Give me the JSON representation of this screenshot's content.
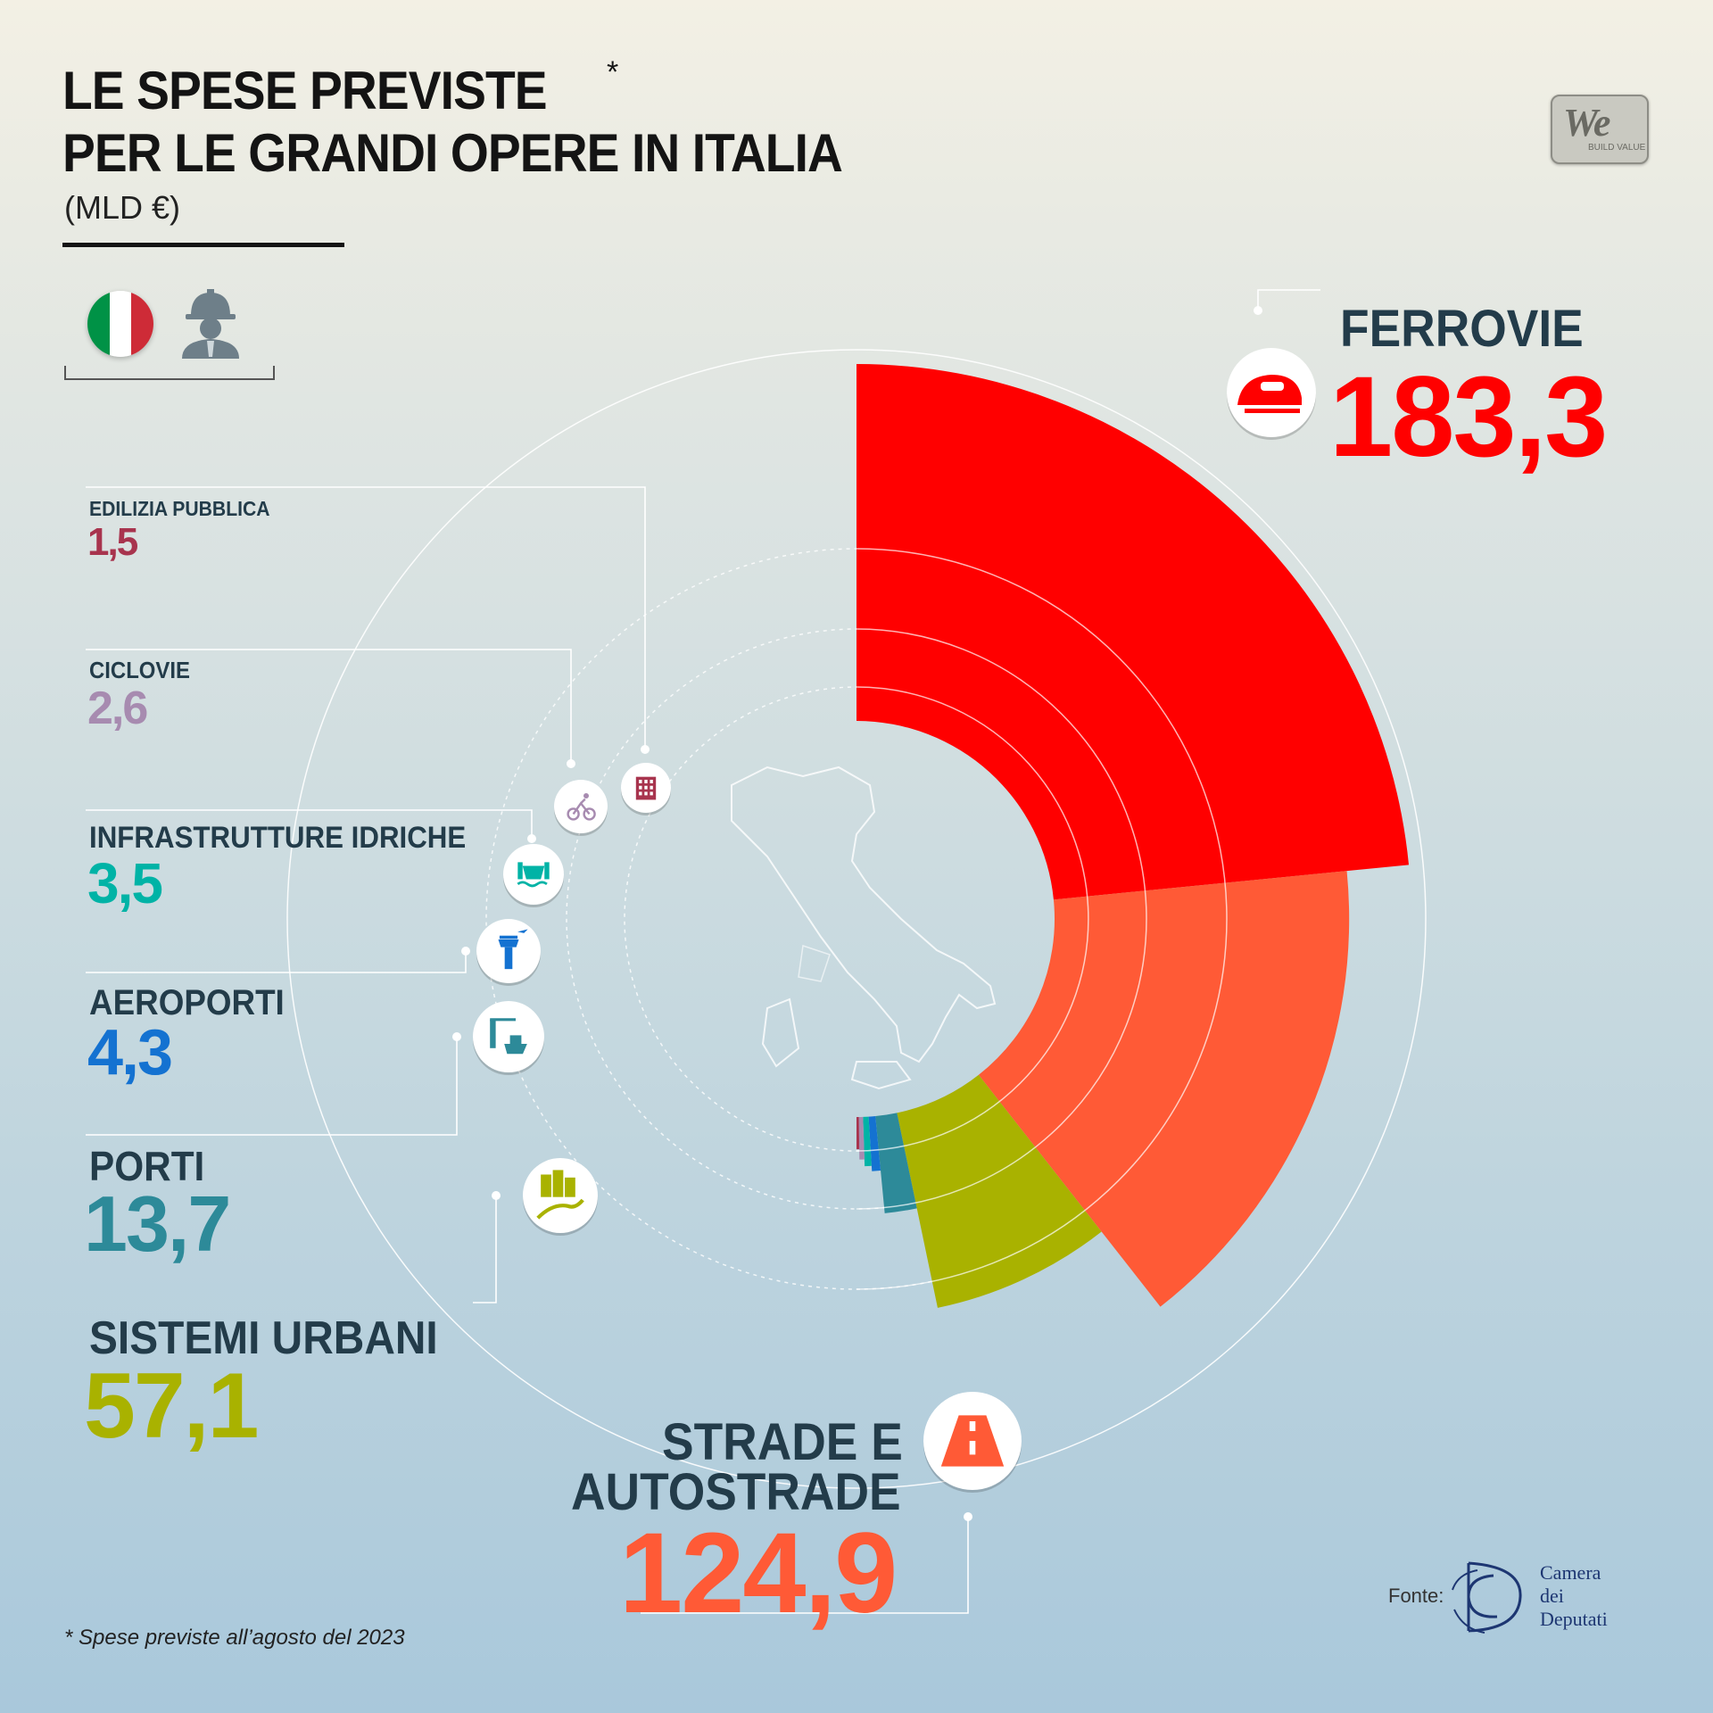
{
  "header": {
    "title_line1": "LE SPESE PREVISTE",
    "title_asterisk": "*",
    "title_line2": "PER LE GRANDI OPERE IN ITALIA",
    "unit": "(MLD €)"
  },
  "brand": {
    "logo_main": "We",
    "logo_sub": "BUILD VALUE"
  },
  "footer": {
    "footnote": "*  Spese previste all’agosto del 2023",
    "source_label": "Fonte:",
    "source_name_lines": [
      "Camera",
      "dei",
      "Deputati"
    ]
  },
  "colors": {
    "ferrovie": "#ff0000",
    "strade": "#ff5a36",
    "sistemi_urbani": "#a9b200",
    "porti": "#2d8a99",
    "aeroporti": "#1472d1",
    "idriche": "#00b3a6",
    "ciclovie": "#a78bb0",
    "edilizia": "#a8344e",
    "title": "#141414",
    "label_dark": "#233c4a"
  },
  "chart_data": {
    "type": "pie",
    "style": "semi-donut, nested rings",
    "title": "LE SPESE PREVISTE PER LE GRANDI OPERE IN ITALIA",
    "unit": "MLD €",
    "categories": [
      "FERROVIE",
      "STRADE E AUTOSTRADE",
      "SISTEMI URBANI",
      "PORTI",
      "AEROPORTI",
      "INFRASTRUTTURE IDRICHE",
      "CICLOVIE",
      "EDILIZIA PUBBLICA"
    ],
    "values": [
      183.3,
      124.9,
      57.1,
      13.7,
      4.3,
      3.5,
      2.6,
      1.5
    ],
    "value_labels": [
      "183,3",
      "124,9",
      "57,1",
      "13,7",
      "4,3",
      "3,5",
      "2,6",
      "1,5"
    ],
    "icons": [
      "train-icon",
      "road-icon",
      "urban-park-icon",
      "port-ship-icon",
      "airport-tower-icon",
      "water-dam-icon",
      "cyclist-icon",
      "building-icon"
    ],
    "footnote": "Spese previste all’agosto del 2023",
    "source": "Camera dei Deputati"
  }
}
